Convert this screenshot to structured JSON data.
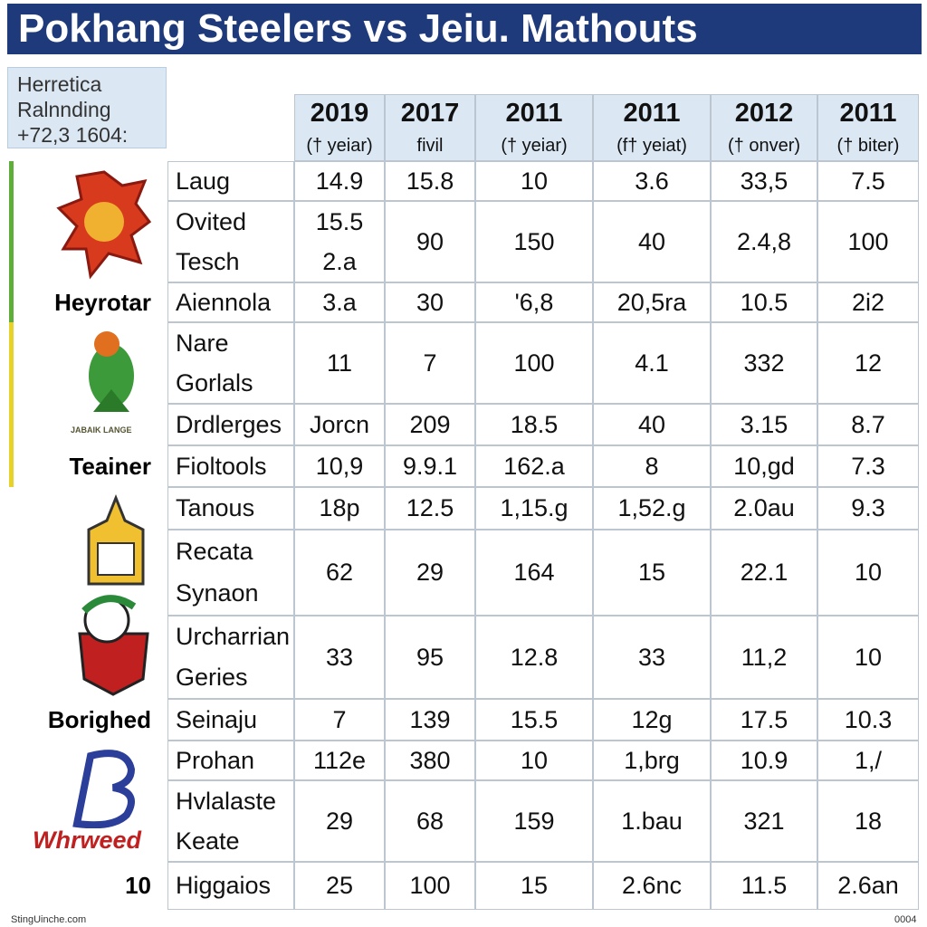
{
  "title": "Pokhang Steelers vs Jeiu. Mathouts",
  "side_box": [
    "Herretica",
    "Ralnnding",
    "+72,3 1604:"
  ],
  "columns": [
    {
      "year": "2019",
      "sub": "(† yeiar)"
    },
    {
      "year": "2017",
      "sub": "fivil"
    },
    {
      "year": "2011",
      "sub": "(† yeiar)"
    },
    {
      "year": "2011",
      "sub": "(f† yeiat)"
    },
    {
      "year": "2012",
      "sub": "(† onver)"
    },
    {
      "year": "2011",
      "sub": "(† biter)"
    }
  ],
  "rows": [
    {
      "name": [
        "Laug"
      ],
      "cells": [
        [
          "14.9"
        ],
        [
          "15.8"
        ],
        [
          "10"
        ],
        [
          "3.6"
        ],
        [
          "33,5"
        ],
        [
          "7.5"
        ]
      ]
    },
    {
      "name": [
        "Ovited",
        "Tesch"
      ],
      "cells": [
        [
          "15.5",
          "2.a"
        ],
        [
          "90"
        ],
        [
          "150"
        ],
        [
          "40"
        ],
        [
          "2.4,8"
        ],
        [
          "100"
        ]
      ]
    },
    {
      "group": "Heyrotar",
      "name": [
        "Aiennola"
      ],
      "cells": [
        [
          "3.a"
        ],
        [
          "30"
        ],
        [
          "'6,8"
        ],
        [
          "20,5ra"
        ],
        [
          "10.5"
        ],
        [
          "2i2"
        ]
      ]
    },
    {
      "name": [
        "Nare",
        "Gorlals"
      ],
      "cells": [
        [
          "11"
        ],
        [
          "7"
        ],
        [
          "100"
        ],
        [
          "4.1"
        ],
        [
          "332"
        ],
        [
          "12"
        ]
      ]
    },
    {
      "name": [
        "Drdlerges"
      ],
      "cells": [
        [
          "Jorcn"
        ],
        [
          "209"
        ],
        [
          "18.5"
        ],
        [
          "40"
        ],
        [
          "3.15"
        ],
        [
          "8.7"
        ]
      ]
    },
    {
      "group": "Teainer",
      "name": [
        "Fioltools"
      ],
      "cells": [
        [
          "10,9"
        ],
        [
          "9.9.1"
        ],
        [
          "162.a"
        ],
        [
          "8"
        ],
        [
          "10,gd"
        ],
        [
          "7.3"
        ]
      ]
    },
    {
      "name": [
        "Tanous"
      ],
      "cells": [
        [
          "18p"
        ],
        [
          "12.5"
        ],
        [
          "1,15.g"
        ],
        [
          "1,52.g"
        ],
        [
          "2.0au"
        ],
        [
          "9.3"
        ]
      ]
    },
    {
      "name": [
        "Recata",
        "Synaon"
      ],
      "cells": [
        [
          "62"
        ],
        [
          "29"
        ],
        [
          "164"
        ],
        [
          "15"
        ],
        [
          "22.1"
        ],
        [
          "10"
        ]
      ]
    },
    {
      "name": [
        "Urcharrian",
        "Geries"
      ],
      "cells": [
        [
          "33"
        ],
        [
          "95"
        ],
        [
          "12.8"
        ],
        [
          "33"
        ],
        [
          "11,2"
        ],
        [
          "10"
        ]
      ]
    },
    {
      "group": "Borighed",
      "name": [
        "Seinaju"
      ],
      "cells": [
        [
          "7"
        ],
        [
          "139"
        ],
        [
          "15.5"
        ],
        [
          "12g"
        ],
        [
          "17.5"
        ],
        [
          "10.3"
        ]
      ]
    },
    {
      "name": [
        "Prohan"
      ],
      "cells": [
        [
          "112e"
        ],
        [
          "380"
        ],
        [
          "10"
        ],
        [
          "1,brg"
        ],
        [
          "10.9"
        ],
        [
          "1,/"
        ]
      ]
    },
    {
      "name": [
        "Hvlalaste",
        "Keate"
      ],
      "cells": [
        [
          "29"
        ],
        [
          "68"
        ],
        [
          "159"
        ],
        [
          "1.bau"
        ],
        [
          "321"
        ],
        [
          "18"
        ]
      ]
    },
    {
      "group": "10",
      "name": [
        "Higgaios"
      ],
      "cells": [
        [
          "25"
        ],
        [
          "100"
        ],
        [
          "15"
        ],
        [
          "2.6nc"
        ],
        [
          "11.5"
        ],
        [
          "2.6an"
        ]
      ]
    }
  ],
  "logos": [
    "JABAIK LANGE",
    "Whrweed"
  ],
  "footer": {
    "left": "StingUinche.com",
    "right": "0004"
  }
}
